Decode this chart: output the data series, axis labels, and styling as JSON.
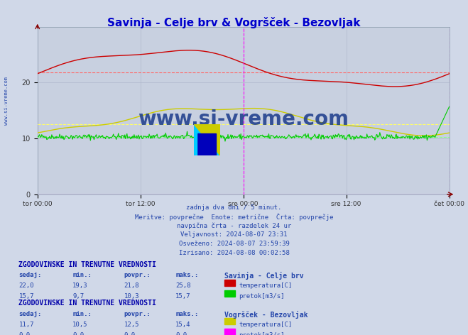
{
  "title": "Savinja - Celje brv & Vogršček - Bezovljak",
  "title_color": "#0000cc",
  "bg_color": "#d0d8e8",
  "plot_bg_color": "#c8d0e0",
  "grid_color": "#b0b8cc",
  "ylim": [
    0,
    30
  ],
  "yticks": [
    0,
    10,
    20
  ],
  "xlabel_ticks": [
    "tor 00:00",
    "tor 12:00",
    "sre 00:00",
    "sre 12:00",
    "čet 00:00"
  ],
  "n_points": 576,
  "savinja_temp_avg": 21.8,
  "savinja_temp_min": 19.3,
  "savinja_temp_max": 25.8,
  "savinja_temp_sedaj": 22.0,
  "savinja_pretok_avg": 10.3,
  "savinja_pretok_min": 9.7,
  "savinja_pretok_max": 15.7,
  "savinja_pretok_sedaj": 15.7,
  "vogr_temp_avg": 12.5,
  "vogr_temp_min": 10.5,
  "vogr_temp_max": 15.4,
  "vogr_temp_sedaj": 11.7,
  "vogr_pretok_avg": 0.0,
  "vogr_pretok_min": 0.0,
  "vogr_pretok_max": 0.0,
  "vogr_pretok_sedaj": 0.0,
  "color_savinja_temp": "#cc0000",
  "color_savinja_pretok": "#00cc00",
  "color_vogr_temp": "#cccc00",
  "color_vogr_pretok": "#ff00ff",
  "color_avg_savinja_temp": "#ff6666",
  "color_avg_savinja_pretok": "#88ff88",
  "color_avg_vogr_temp": "#ffff66",
  "color_vline": "#ff00ff",
  "watermark_text": "www.si-vreme.com",
  "watermark_color": "#1a3a8a",
  "subtitle_line1": "zadnja dva dni / 5 minut.",
  "subtitle_line2": "Meritve: povprečne  Enote: metrične  Črta: povprečje",
  "subtitle_line3": "navpična črta - razdelek 24 ur",
  "subtitle_line4": "Veljavnost: 2024-08-07 23:31",
  "subtitle_line5": "Osveženo: 2024-08-07 23:59:39",
  "subtitle_line6": "Izrisano: 2024-08-08 00:02:58",
  "table1_header": "ZGODOVINSKE IN TRENUTNE VREDNOSTI",
  "table1_station": "Savinja - Celje brv",
  "table1_row1": [
    "22,0",
    "19,3",
    "21,8",
    "25,8"
  ],
  "table1_row2": [
    "15,7",
    "9,7",
    "10,3",
    "15,7"
  ],
  "table2_header": "ZGODOVINSKE IN TRENUTNE VREDNOSTI",
  "table2_station": "Vogršček - Bezovljak",
  "table2_row1": [
    "11,7",
    "10,5",
    "12,5",
    "15,4"
  ],
  "table2_row2": [
    "0,0",
    "0,0",
    "0,0",
    "0,0"
  ],
  "text_color": "#2244aa",
  "table_header_color": "#0000aa"
}
